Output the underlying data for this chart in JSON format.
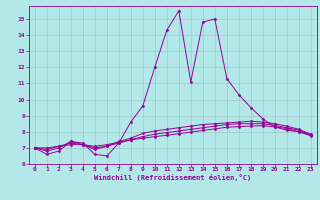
{
  "title": "",
  "xlabel": "Windchill (Refroidissement éolien,°C)",
  "ylabel": "",
  "bg_color": "#b2e8e8",
  "grid_color": "#a0c8c8",
  "line_color": "#990099",
  "xlim": [
    -0.5,
    23.5
  ],
  "ylim": [
    6,
    15.8
  ],
  "yticks": [
    6,
    7,
    8,
    9,
    10,
    11,
    12,
    13,
    14,
    15
  ],
  "xticks": [
    0,
    1,
    2,
    3,
    4,
    5,
    6,
    7,
    8,
    9,
    10,
    11,
    12,
    13,
    14,
    15,
    16,
    17,
    18,
    19,
    20,
    21,
    22,
    23
  ],
  "lines": [
    [
      7.0,
      6.6,
      6.8,
      7.4,
      7.3,
      6.6,
      6.5,
      7.3,
      8.6,
      9.6,
      12.0,
      14.3,
      15.5,
      11.1,
      14.8,
      15.0,
      11.3,
      10.3,
      9.5,
      8.8,
      8.3,
      8.1,
      8.0,
      7.8
    ],
    [
      7.0,
      6.8,
      7.0,
      7.4,
      7.2,
      6.9,
      7.1,
      7.4,
      7.6,
      7.9,
      8.05,
      8.15,
      8.25,
      8.35,
      8.45,
      8.5,
      8.55,
      8.6,
      8.65,
      8.6,
      8.5,
      8.35,
      8.15,
      7.85
    ],
    [
      7.0,
      6.9,
      7.1,
      7.3,
      7.2,
      7.0,
      7.1,
      7.3,
      7.5,
      7.7,
      7.85,
      7.95,
      8.05,
      8.15,
      8.25,
      8.35,
      8.45,
      8.5,
      8.5,
      8.5,
      8.4,
      8.25,
      8.1,
      7.8
    ],
    [
      7.0,
      7.0,
      7.1,
      7.2,
      7.2,
      7.1,
      7.2,
      7.35,
      7.5,
      7.6,
      7.7,
      7.78,
      7.88,
      7.98,
      8.08,
      8.18,
      8.28,
      8.32,
      8.35,
      8.38,
      8.3,
      8.2,
      8.0,
      7.75
    ]
  ]
}
